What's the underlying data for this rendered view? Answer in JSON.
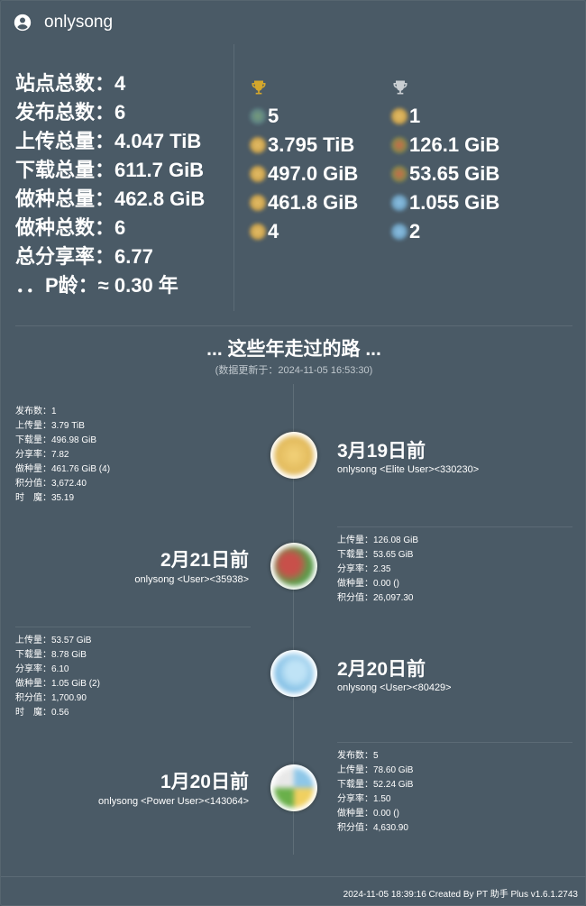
{
  "header": {
    "username": "onlysong",
    "icon": "account-circle-icon"
  },
  "stats": [
    "站点总数：4",
    "发布总数：6",
    "上传总量：4.047 TiB",
    "下载总量：611.7 GiB",
    "做种总量：462.8 GiB",
    "做种总数：6",
    "总分享率：6.77",
    "．．P龄：≈ 0.30 年"
  ],
  "top_sites": {
    "gold_trophy_color": "#d4a72c",
    "silver_trophy_color": "#c9ced2",
    "first": [
      "5",
      "3.795 TiB",
      "497.0 GiB",
      "461.8 GiB",
      "4"
    ],
    "second": [
      "1",
      "126.1 GiB",
      "53.65 GiB",
      "1.055 GiB",
      "2"
    ]
  },
  "timeline": {
    "title": "... 这些年走过的路 ...",
    "updated": "(数据更新于：2024-11-05 16:53:30)",
    "entries": [
      {
        "ago": "3月19日前",
        "user": "onlysong   <Elite User><330230>",
        "details": [
          "发布数：1",
          "上传量：3.79 TiB",
          "下载量：496.98 GiB",
          "分享率：7.82",
          "做种量：461.76 GiB (4)",
          "积分值：3,672.40",
          "时　魔：35.19"
        ]
      },
      {
        "ago": "2月21日前",
        "user": "onlysong   <User><35938>",
        "details": [
          "上传量：126.08 GiB",
          "下载量：53.65 GiB",
          "分享率：2.35",
          "做种量：0.00 ()",
          "积分值：26,097.30"
        ]
      },
      {
        "ago": "2月20日前",
        "user": "onlysong   <User><80429>",
        "details": [
          "上传量：53.57 GiB",
          "下载量：8.78 GiB",
          "分享率：6.10",
          "做种量：1.05 GiB (2)",
          "积分值：1,700.90",
          "时　魔：0.56"
        ]
      },
      {
        "ago": "1月20日前",
        "user": "onlysong   <Power User><143064>",
        "details": [
          "发布数：5",
          "上传量：78.60 GiB",
          "下载量：52.24 GiB",
          "分享率：1.50",
          "做种量：0.00 ()",
          "积分值：4,630.90"
        ]
      }
    ]
  },
  "footer": "2024-11-05 18:39:16 Created By PT 助手 Plus v1.6.1.2743"
}
